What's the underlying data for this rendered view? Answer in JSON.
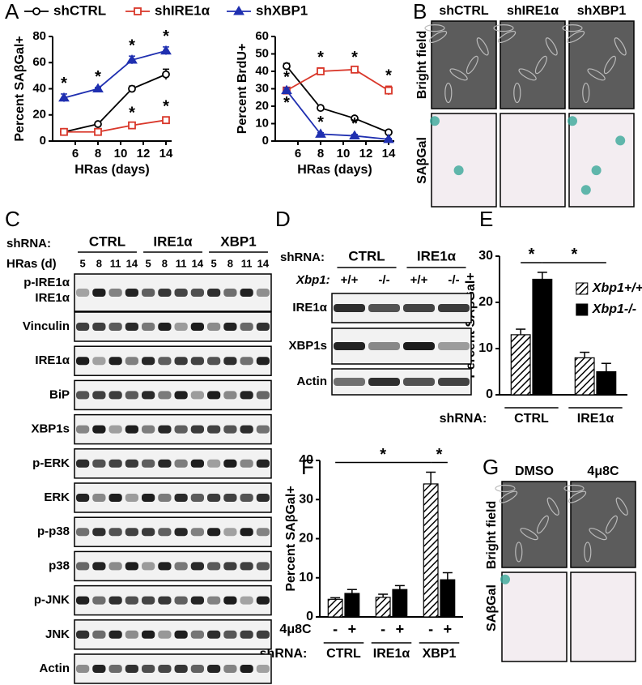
{
  "panel_labels": [
    "A",
    "B",
    "C",
    "D",
    "E",
    "F",
    "G"
  ],
  "chart_data": [
    {
      "type": "line",
      "x_label": "HRas (days)",
      "y_label": "Percent SAβGal+",
      "legend": "top",
      "x": [
        5,
        8,
        11,
        14
      ],
      "xlim": [
        4,
        14.5
      ],
      "xticks": [
        6,
        8,
        10,
        12,
        14
      ],
      "ylim": [
        0,
        80
      ],
      "yticks": [
        0,
        20,
        40,
        60,
        80
      ],
      "series": [
        {
          "name": "shCTRL",
          "color": "#000000",
          "marker": "o",
          "values": [
            7,
            13,
            40,
            51
          ],
          "errors": [
            1,
            1,
            2,
            4
          ]
        },
        {
          "name": "shIRE1α",
          "color": "#d9372a",
          "marker": "s",
          "values": [
            7,
            7,
            12,
            16
          ],
          "errors": [
            1,
            1,
            1.5,
            2.5
          ],
          "significance": [
            null,
            null,
            "*",
            "*"
          ]
        },
        {
          "name": "shXBP1",
          "color": "#1f2fb0",
          "marker": "^",
          "values": [
            33,
            40,
            62,
            69
          ],
          "errors": [
            3,
            1,
            3,
            3
          ],
          "significance": [
            "*",
            "*",
            "*",
            "*"
          ]
        }
      ]
    },
    {
      "type": "line",
      "x_label": "HRas (days)",
      "y_label": "Percent BrdU+",
      "x": [
        5,
        8,
        11,
        14
      ],
      "xlim": [
        4,
        14.5
      ],
      "xticks": [
        6,
        8,
        10,
        12,
        14
      ],
      "ylim": [
        0,
        60
      ],
      "yticks": [
        0,
        10,
        20,
        30,
        40,
        50,
        60
      ],
      "series": [
        {
          "color": "#000000",
          "marker": "o",
          "values": [
            43,
            19,
            13,
            5
          ],
          "errors": [
            1.5,
            1,
            1,
            0.8
          ]
        },
        {
          "color": "#d9372a",
          "marker": "s",
          "values": [
            29,
            40,
            41,
            29
          ],
          "errors": [
            1.5,
            2,
            1,
            2.5
          ],
          "significance": [
            "*",
            "*",
            "*",
            "*"
          ]
        },
        {
          "color": "#1f2fb0",
          "marker": "^",
          "values": [
            29,
            4,
            3,
            1
          ],
          "errors": [
            1.5,
            0.8,
            0.8,
            0.5
          ],
          "significance": [
            "*",
            "*",
            "*",
            null
          ]
        }
      ]
    },
    {
      "type": "bar",
      "x_label": "shRNA:",
      "y_label": "Percent SAβGal+",
      "legend": "upper right",
      "categories": [
        "CTRL",
        "IRE1α"
      ],
      "ylim": [
        0,
        30
      ],
      "yticks": [
        0,
        10,
        20,
        30
      ],
      "series": [
        {
          "name": "Xbp1+/+",
          "color": "#000000",
          "hatch": true,
          "values": [
            13,
            8
          ],
          "errors": [
            1.2,
            1.2
          ]
        },
        {
          "name": "Xbp1-/-",
          "color": "#000000",
          "values": [
            25,
            5
          ],
          "errors": [
            1.5,
            1.8
          ]
        }
      ],
      "annotations": [
        {
          "text": "*",
          "from": [
            0,
            0
          ],
          "to": [
            0,
            1
          ]
        },
        {
          "text": "*",
          "from": [
            0,
            1
          ],
          "to": [
            1,
            1
          ]
        }
      ]
    },
    {
      "type": "bar",
      "x_label": "shRNA:",
      "y_label": "Percent SAβGal+",
      "series_label": "4μ8C",
      "categories": [
        "CTRL",
        "IRE1α",
        "XBP1"
      ],
      "ylim": [
        0,
        40
      ],
      "yticks": [
        0,
        10,
        20,
        30,
        40
      ],
      "series": [
        {
          "name": "-",
          "color": "#000000",
          "hatch": true,
          "values": [
            4.5,
            5,
            34
          ],
          "errors": [
            0.4,
            0.8,
            3
          ]
        },
        {
          "name": "+",
          "color": "#000000",
          "values": [
            6,
            7,
            9.5
          ],
          "errors": [
            1,
            1,
            1.8
          ]
        }
      ],
      "annotations": [
        {
          "text": "*",
          "from": [
            0,
            0
          ],
          "to": [
            2,
            0
          ]
        },
        {
          "text": "*",
          "from": [
            2,
            0
          ],
          "to": [
            2,
            1
          ]
        }
      ]
    }
  ],
  "panel_b": {
    "columns": [
      "shCTRL",
      "shIRE1α",
      "shXBP1"
    ],
    "rows": [
      "Bright field",
      "SAβGal"
    ]
  },
  "panel_c": {
    "shrna_label": "shRNA:",
    "groups": [
      "CTRL",
      "IRE1α",
      "XBP1"
    ],
    "hras_label": "HRas (d)",
    "days": [
      "5",
      "8",
      "11",
      "14"
    ],
    "top_blot": [
      "p-IRE1α",
      "IRE1α"
    ],
    "blots": [
      "Vinculin",
      "IRE1α",
      "BiP",
      "XBP1s",
      "p-ERK",
      "ERK",
      "p-p38",
      "p38",
      "p-JNK",
      "JNK",
      "Actin"
    ]
  },
  "panel_d": {
    "shrna_label": "shRNA:",
    "groups": [
      "CTRL",
      "IRE1α"
    ],
    "xbp1_label": "Xbp1:",
    "genotypes": [
      "+/+",
      "-/-",
      "+/+",
      "-/-"
    ],
    "blots": [
      "IRE1α",
      "XBP1s",
      "Actin"
    ]
  },
  "panel_g": {
    "columns": [
      "DMSO",
      "4μ8C"
    ],
    "rows": [
      "Bright field",
      "SAβGal"
    ]
  }
}
